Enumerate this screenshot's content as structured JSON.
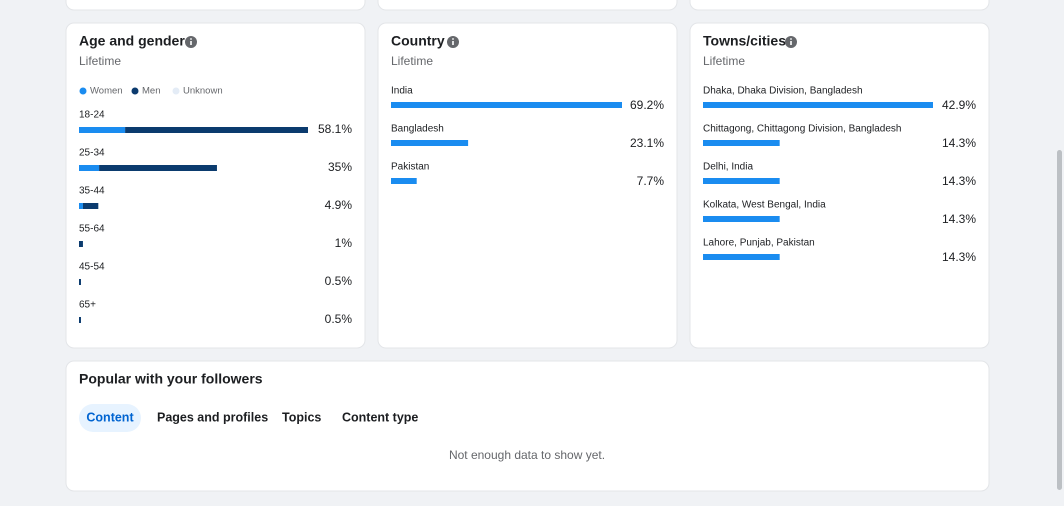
{
  "age_gender": {
    "title": "Age and gender",
    "subtitle": "Lifetime",
    "categories": [
      "18-24",
      "25-34",
      "35-44",
      "55-64",
      "45-54",
      "65+"
    ],
    "series": [
      {
        "name": "Women",
        "color": "#1a8cf0",
        "values": [
          11.7,
          5.1,
          1,
          0,
          0,
          0
        ]
      },
      {
        "name": "Men",
        "color": "#0b3b6e",
        "values": [
          46.4,
          29.9,
          3.9,
          1,
          0.5,
          0.5
        ]
      },
      {
        "name": "Unknown",
        "color": "#e4ecf6",
        "values": [
          0,
          0,
          0,
          0,
          0,
          0
        ]
      }
    ],
    "totals": [
      58.1,
      35,
      4.9,
      1,
      0.5,
      0.5
    ],
    "total_labels": [
      "58.1%",
      "35%",
      "4.9%",
      "1%",
      "0.5%",
      "0.5%"
    ]
  },
  "country": {
    "title": "Country",
    "subtitle": "Lifetime",
    "color": "#1a8cf0",
    "categories": [
      "India",
      "Bangladesh",
      "Pakistan"
    ],
    "values": [
      69.2,
      23.1,
      7.7
    ],
    "value_labels": [
      "69.2%",
      "23.1%",
      "7.7%"
    ]
  },
  "towns": {
    "title": "Towns/cities",
    "subtitle": "Lifetime",
    "color": "#1a8cf0",
    "categories": [
      "Dhaka, Dhaka Division, Bangladesh",
      "Chittagong, Chittagong Division, Bangladesh",
      "Delhi, India",
      "Kolkata, West Bengal, India",
      "Lahore, Punjab, Pakistan"
    ],
    "values": [
      42.9,
      14.3,
      14.3,
      14.3,
      14.3
    ],
    "value_labels": [
      "42.9%",
      "14.3%",
      "14.3%",
      "14.3%",
      "14.3%"
    ]
  },
  "popular": {
    "title": "Popular with your followers",
    "tabs": [
      "Content",
      "Pages and profiles",
      "Topics",
      "Content type"
    ],
    "empty_message": "Not enough data to show yet."
  }
}
